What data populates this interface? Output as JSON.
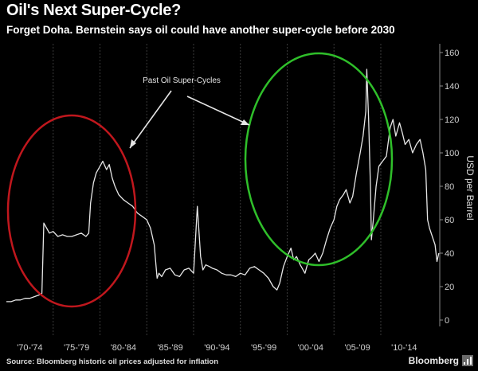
{
  "header": {
    "title": "Oil's Next Super-Cycle?",
    "subtitle": "Forget Doha. Bernstein says oil could have another super-cycle before 2030"
  },
  "footer": {
    "source": "Source: Bloomberg historic oil prices adjusted for inflation",
    "brand": "Bloomberg"
  },
  "colors": {
    "background": "#000000",
    "line": "#e6e6e6",
    "grid": "#3a3a3a",
    "red_circle": "#c0171d",
    "green_circle": "#2fbf2a",
    "text": "#ffffff"
  },
  "chart_data": {
    "type": "line",
    "title": "Oil's Next Super-Cycle?",
    "ylabel": "USD per Barrel",
    "y_axis_position": "right",
    "ylim": [
      0,
      160
    ],
    "y_ticks": [
      0,
      20,
      40,
      60,
      80,
      100,
      120,
      140,
      160
    ],
    "xlim": [
      1970,
      2016.3
    ],
    "x_tick_labels": [
      "'70-'74",
      "'75-'79",
      "'80-'84",
      "'85-'89",
      "'90-'94",
      "'95-'99",
      "'00-'04",
      "'05-'09",
      "'10-'14"
    ],
    "grid": "vertical",
    "annotation": "Past Oil Super-Cycles",
    "series": [
      {
        "x": [
          1970.0,
          1970.5,
          1971.0,
          1971.5,
          1972.0,
          1972.5,
          1973.0,
          1973.5,
          1973.8,
          1974.0,
          1974.3,
          1974.6,
          1975.0,
          1975.5,
          1976.0,
          1976.5,
          1977.0,
          1977.5,
          1978.0,
          1978.5,
          1978.8,
          1979.0,
          1979.3,
          1979.6,
          1980.0,
          1980.3,
          1980.7,
          1981.0,
          1981.3,
          1981.6,
          1982.0,
          1982.5,
          1983.0,
          1983.5,
          1984.0,
          1984.5,
          1985.0,
          1985.4,
          1985.8,
          1986.1,
          1986.3,
          1986.6,
          1987.0,
          1987.5,
          1988.0,
          1988.5,
          1989.0,
          1989.5,
          1990.0,
          1990.4,
          1990.75,
          1991.0,
          1991.3,
          1991.7,
          1992.0,
          1992.5,
          1993.0,
          1993.5,
          1994.0,
          1994.5,
          1995.0,
          1995.5,
          1996.0,
          1996.5,
          1997.0,
          1997.5,
          1998.0,
          1998.5,
          1998.9,
          1999.2,
          1999.6,
          2000.0,
          2000.4,
          2000.7,
          2001.0,
          2001.4,
          2001.9,
          2002.3,
          2002.7,
          2003.0,
          2003.4,
          2003.8,
          2004.2,
          2004.6,
          2005.0,
          2005.3,
          2005.6,
          2006.0,
          2006.3,
          2006.7,
          2007.0,
          2007.4,
          2007.8,
          2008.1,
          2008.4,
          2008.5,
          2008.7,
          2008.9,
          2009.0,
          2009.2,
          2009.5,
          2009.8,
          2010.2,
          2010.6,
          2011.0,
          2011.3,
          2011.6,
          2012.0,
          2012.3,
          2012.6,
          2013.0,
          2013.4,
          2013.8,
          2014.2,
          2014.5,
          2014.8,
          2015.0,
          2015.2,
          2015.5,
          2015.8,
          2016.0,
          2016.2
        ],
        "values": [
          11,
          11,
          12,
          12,
          13,
          13,
          14,
          15,
          16,
          58,
          55,
          52,
          53,
          50,
          51,
          50,
          50,
          51,
          52,
          50,
          52,
          70,
          82,
          88,
          92,
          95,
          90,
          93,
          85,
          80,
          75,
          72,
          70,
          68,
          64,
          62,
          60,
          55,
          45,
          25,
          28,
          26,
          30,
          31,
          27,
          26,
          30,
          31,
          28,
          68,
          38,
          30,
          33,
          32,
          31,
          30,
          28,
          27,
          27,
          26,
          28,
          27,
          31,
          32,
          30,
          28,
          25,
          20,
          18,
          22,
          32,
          38,
          43,
          36,
          38,
          33,
          28,
          36,
          38,
          40,
          35,
          40,
          48,
          55,
          60,
          68,
          72,
          75,
          78,
          70,
          74,
          88,
          100,
          110,
          125,
          150,
          120,
          78,
          48,
          60,
          80,
          92,
          95,
          98,
          115,
          120,
          110,
          118,
          112,
          105,
          108,
          100,
          105,
          108,
          100,
          90,
          60,
          55,
          50,
          45,
          35,
          40
        ]
      }
    ]
  }
}
